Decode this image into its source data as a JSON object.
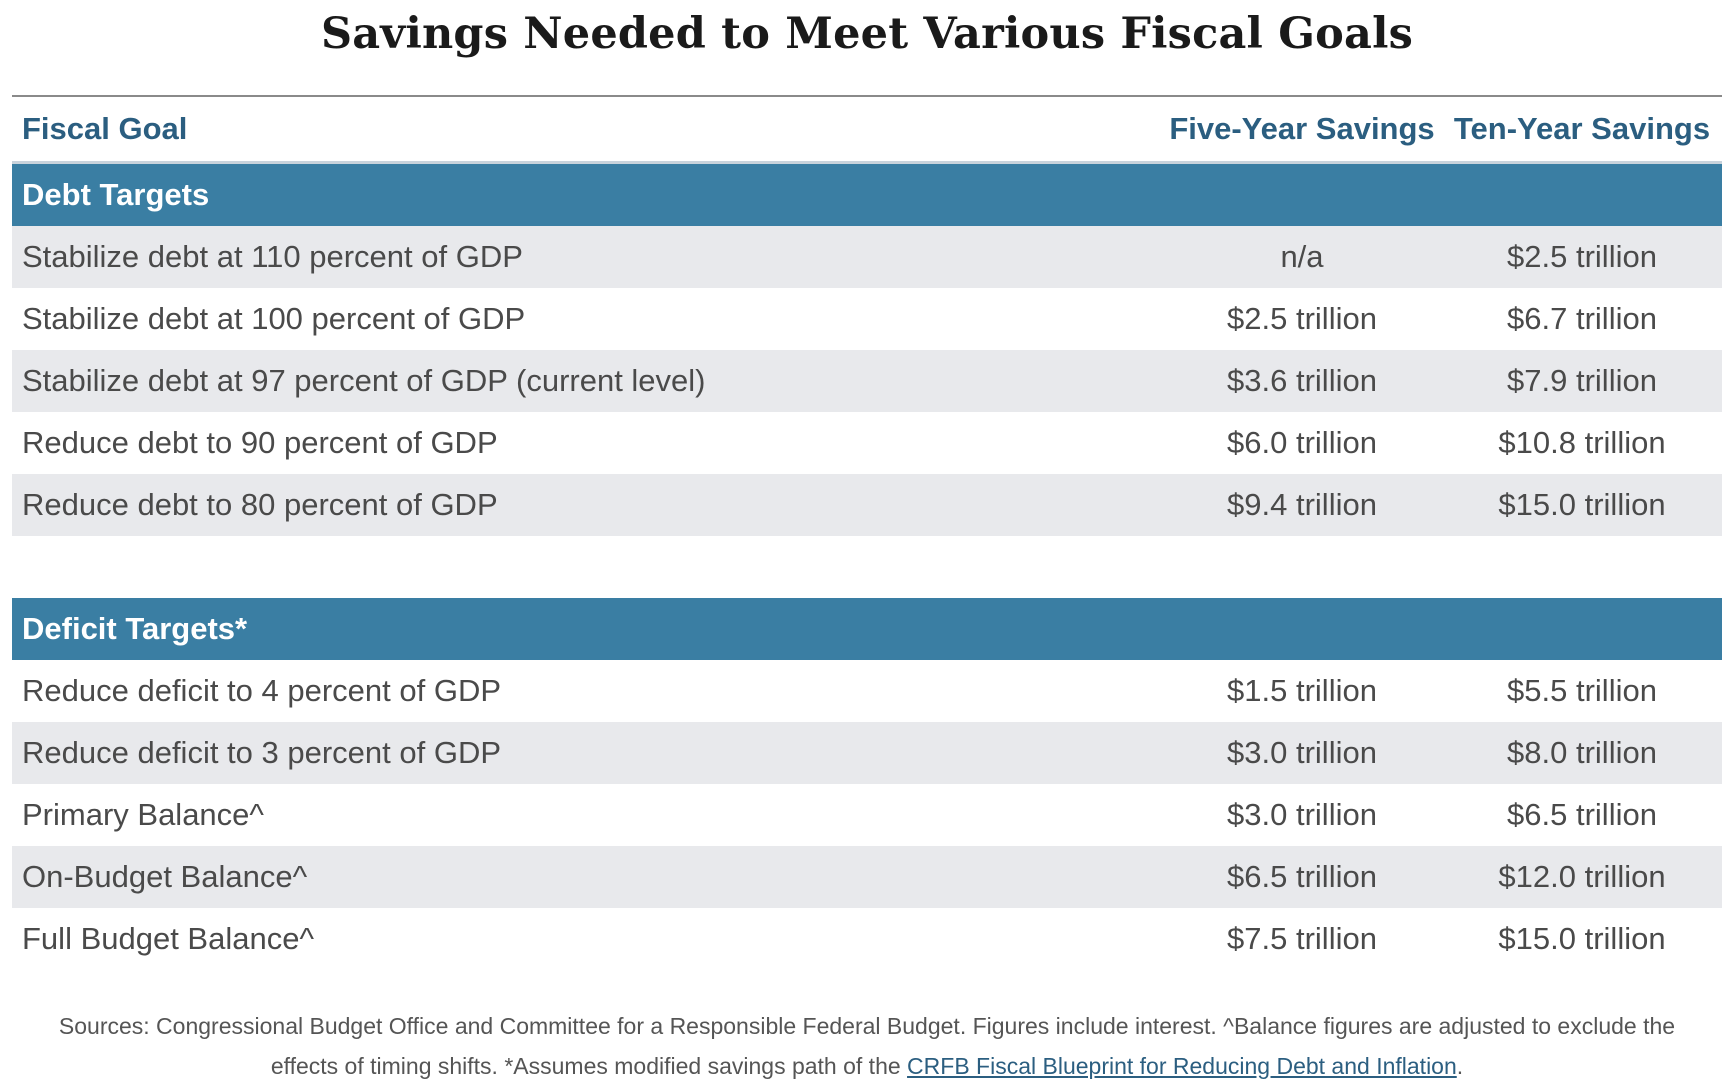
{
  "title": "Savings Needed to Meet Various Fiscal Goals",
  "headers": {
    "goal": "Fiscal Goal",
    "five_year": "Five-Year Savings",
    "ten_year": "Ten-Year Savings"
  },
  "sections": [
    {
      "label": "Debt Targets",
      "rows": [
        {
          "goal": "Stabilize debt at 110 percent of GDP",
          "five_year": "n/a",
          "ten_year": "$2.5 trillion"
        },
        {
          "goal": "Stabilize debt at 100 percent of GDP",
          "five_year": "$2.5 trillion",
          "ten_year": "$6.7 trillion"
        },
        {
          "goal": "Stabilize debt at 97 percent of GDP (current level)",
          "five_year": "$3.6 trillion",
          "ten_year": "$7.9 trillion"
        },
        {
          "goal": "Reduce debt to 90 percent of GDP",
          "five_year": "$6.0 trillion",
          "ten_year": "$10.8 trillion"
        },
        {
          "goal": "Reduce debt to 80 percent of GDP",
          "five_year": "$9.4 trillion",
          "ten_year": "$15.0 trillion"
        }
      ]
    },
    {
      "label": "Deficit Targets*",
      "rows": [
        {
          "goal": "Reduce deficit to 4 percent of GDP",
          "five_year": "$1.5 trillion",
          "ten_year": "$5.5 trillion"
        },
        {
          "goal": "Reduce deficit to 3 percent of GDP",
          "five_year": "$3.0 trillion",
          "ten_year": "$8.0 trillion"
        },
        {
          "goal": "Primary Balance^",
          "five_year": "$3.0 trillion",
          "ten_year": "$6.5 trillion"
        },
        {
          "goal": "On-Budget Balance^",
          "five_year": "$6.5 trillion",
          "ten_year": "$12.0 trillion"
        },
        {
          "goal": "Full Budget Balance^",
          "five_year": "$7.5 trillion",
          "ten_year": "$15.0 trillion"
        }
      ]
    }
  ],
  "footnote": {
    "line1": "Sources: Congressional Budget Office and Committee for a Responsible Federal Budget. Figures include interest. ^Balance figures are adjusted to exclude the",
    "line2_prefix": "effects of timing shifts. *Assumes modified savings path of the ",
    "link_text": "CRFB Fiscal Blueprint for Reducing Debt and Inflation",
    "line2_suffix": "."
  },
  "colors": {
    "section_header_bg": "#3a7ea3",
    "header_text": "#2b5e80",
    "row_shade": "#e8e9ec"
  },
  "chart_data": {
    "type": "table",
    "title": "Savings Needed to Meet Various Fiscal Goals",
    "columns": [
      "Fiscal Goal",
      "Five-Year Savings",
      "Ten-Year Savings"
    ],
    "groups": [
      {
        "name": "Debt Targets",
        "rows": [
          [
            "Stabilize debt at 110 percent of GDP",
            "n/a",
            "$2.5 trillion"
          ],
          [
            "Stabilize debt at 100 percent of GDP",
            "$2.5 trillion",
            "$6.7 trillion"
          ],
          [
            "Stabilize debt at 97 percent of GDP (current level)",
            "$3.6 trillion",
            "$7.9 trillion"
          ],
          [
            "Reduce debt to 90 percent of GDP",
            "$6.0 trillion",
            "$10.8 trillion"
          ],
          [
            "Reduce debt to 80 percent of GDP",
            "$9.4 trillion",
            "$15.0 trillion"
          ]
        ]
      },
      {
        "name": "Deficit Targets*",
        "rows": [
          [
            "Reduce deficit to 4 percent of GDP",
            "$1.5 trillion",
            "$5.5 trillion"
          ],
          [
            "Reduce deficit to 3 percent of GDP",
            "$3.0 trillion",
            "$8.0 trillion"
          ],
          [
            "Primary Balance^",
            "$3.0 trillion",
            "$6.5 trillion"
          ],
          [
            "On-Budget Balance^",
            "$6.5 trillion",
            "$12.0 trillion"
          ],
          [
            "Full Budget Balance^",
            "$7.5 trillion",
            "$15.0 trillion"
          ]
        ]
      }
    ]
  }
}
